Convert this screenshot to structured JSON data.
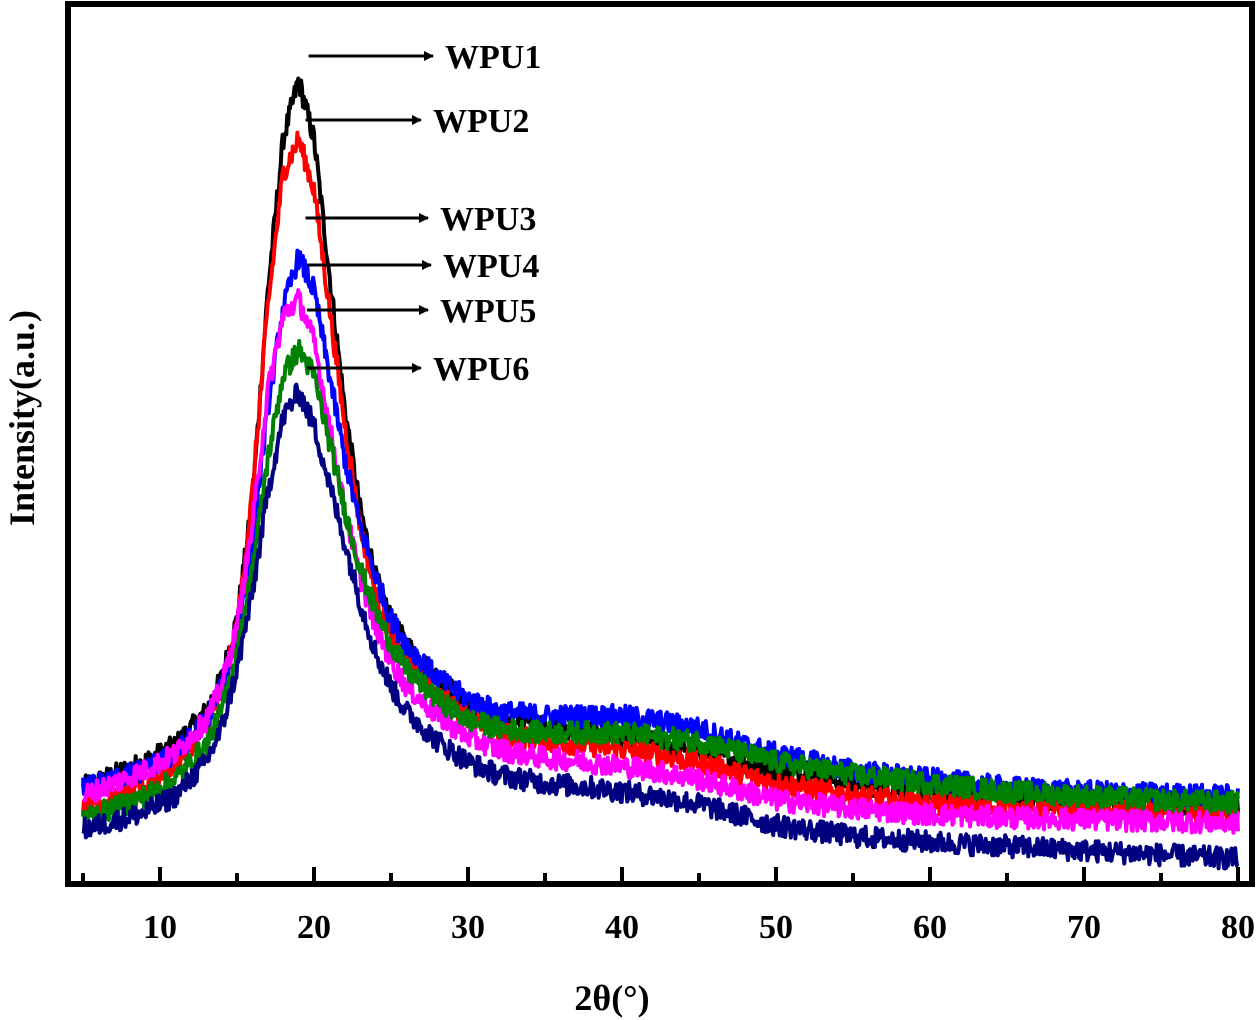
{
  "chart_data": {
    "type": "line",
    "title": "",
    "xlabel": "2θ(°)",
    "ylabel": "Intensity(a.u.)",
    "xlim": [
      5,
      80
    ],
    "ylim": [
      0,
      100
    ],
    "y_ticks_shown": false,
    "grid": false,
    "x_ticks": [
      10,
      20,
      30,
      40,
      50,
      60,
      70,
      80
    ],
    "x_tick_labels": [
      "10",
      "20",
      "30",
      "40",
      "50",
      "60",
      "70",
      "80"
    ],
    "annotations": [
      {
        "text": "WPU1",
        "series": "WPU1",
        "x": 19.0,
        "y": 95
      },
      {
        "text": "WPU2",
        "series": "WPU2",
        "x": 18.8,
        "y": 88
      },
      {
        "text": "WPU3",
        "series": "WPU3",
        "x": 18.8,
        "y": 74
      },
      {
        "text": "WPU4",
        "series": "WPU4",
        "x": 18.9,
        "y": 69
      },
      {
        "text": "WPU5",
        "series": "WPU5",
        "x": 18.9,
        "y": 63
      },
      {
        "text": "WPU6",
        "series": "WPU6",
        "x": 18.9,
        "y": 58
      }
    ],
    "x": [
      5,
      7,
      9,
      11,
      13,
      14,
      15,
      16,
      17,
      18,
      19,
      20,
      21,
      22,
      23,
      24,
      25,
      26,
      28,
      30,
      32,
      35,
      38,
      40,
      42,
      45,
      48,
      50,
      55,
      60,
      65,
      70,
      75,
      80
    ],
    "series": [
      {
        "name": "WPU1",
        "color": "#000000",
        "values": [
          11,
          12.5,
          14,
          16,
          20,
          24,
          31,
          45,
          70,
          88,
          95,
          88,
          72,
          56,
          44,
          36,
          31,
          28,
          24,
          21,
          19.5,
          18.5,
          17.5,
          17,
          16.5,
          15.5,
          14,
          13,
          11.5,
          10.5,
          9.8,
          9.5,
          9.2,
          9
        ]
      },
      {
        "name": "WPU2",
        "color": "#ff0000",
        "values": [
          9,
          9.5,
          11,
          14,
          18,
          22,
          30,
          46,
          68,
          84,
          88,
          82,
          68,
          54,
          42,
          34,
          29,
          26,
          22,
          19.5,
          17.5,
          16.5,
          16,
          15.5,
          15,
          14,
          12.5,
          11.5,
          10,
          9,
          8.5,
          8.2,
          8,
          7.8
        ]
      },
      {
        "name": "WPU3",
        "color": "#0000ff",
        "values": [
          11,
          12,
          13,
          15,
          19,
          23,
          29,
          40,
          56,
          68,
          74,
          70,
          60,
          50,
          42,
          36,
          31,
          28,
          24,
          21.5,
          20,
          19.5,
          19.5,
          19.5,
          19,
          18,
          16,
          15,
          13,
          12,
          11,
          10.5,
          10.2,
          10
        ]
      },
      {
        "name": "WPU4",
        "color": "#ff00ff",
        "values": [
          10,
          11.5,
          13,
          15,
          19,
          23,
          30,
          42,
          58,
          67,
          69,
          64,
          54,
          44,
          36,
          30,
          26,
          23,
          19.5,
          17,
          15.5,
          14.5,
          14,
          13.5,
          13,
          12,
          10.5,
          9.5,
          8.5,
          7.8,
          7.4,
          7.2,
          7,
          6.8
        ]
      },
      {
        "name": "WPU5",
        "color": "#008000",
        "values": [
          7.5,
          8.5,
          10,
          12,
          16,
          20,
          27,
          37,
          50,
          60,
          63,
          60,
          52,
          44,
          37,
          32,
          28,
          25,
          21.5,
          19,
          18,
          17.5,
          17.5,
          17.5,
          17,
          16.5,
          15,
          14,
          12.5,
          11.5,
          10.5,
          10,
          9.5,
          9.2
        ]
      },
      {
        "name": "WPU6",
        "color": "#000080",
        "values": [
          6,
          7,
          8,
          10,
          14,
          18,
          25,
          34,
          46,
          55,
          58,
          54,
          47,
          40,
          33,
          27,
          23,
          20,
          16.5,
          14,
          12.5,
          11.5,
          11,
          10.5,
          10,
          9,
          7.5,
          6.5,
          5.2,
          4.5,
          4,
          3.5,
          3,
          2.5
        ]
      }
    ]
  }
}
